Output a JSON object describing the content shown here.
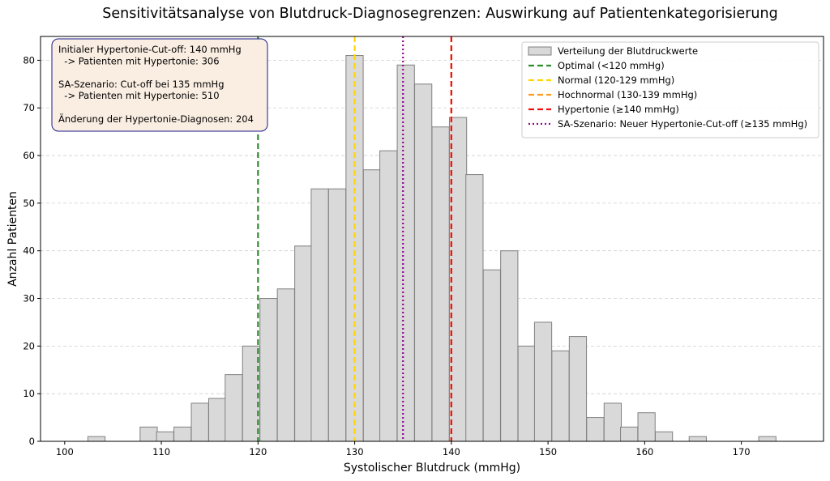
{
  "chart_data": {
    "type": "bar",
    "title": "Sensitivitätsanalyse von Blutdruck-Diagnosegrenzen: Auswirkung auf Patientenkategorisierung",
    "xlabel": "Systolischer Blutdruck (mmHg)",
    "ylabel": "Anzahl Patienten",
    "xlim": [
      97.5,
      178.5
    ],
    "ylim": [
      0,
      85
    ],
    "xticks": [
      100,
      110,
      120,
      130,
      140,
      150,
      160,
      170
    ],
    "yticks": [
      0,
      10,
      20,
      30,
      40,
      50,
      60,
      70,
      80
    ],
    "bin_width": 1.78,
    "grid": "y-dashed",
    "legend_position": "top-right",
    "histogram": {
      "name": "Verteilung der Blutdruckwerte",
      "color": "#d9d9d9",
      "edge_color": "#808080",
      "bins": [
        {
          "x0": 102.4,
          "count": 1
        },
        {
          "x0": 104.2,
          "count": 0
        },
        {
          "x0": 106.0,
          "count": 0
        },
        {
          "x0": 107.8,
          "count": 3
        },
        {
          "x0": 109.5,
          "count": 2
        },
        {
          "x0": 111.3,
          "count": 3
        },
        {
          "x0": 113.1,
          "count": 8
        },
        {
          "x0": 114.9,
          "count": 9
        },
        {
          "x0": 116.6,
          "count": 14
        },
        {
          "x0": 118.4,
          "count": 20
        },
        {
          "x0": 120.2,
          "count": 30
        },
        {
          "x0": 122.0,
          "count": 32
        },
        {
          "x0": 123.8,
          "count": 41
        },
        {
          "x0": 125.5,
          "count": 53
        },
        {
          "x0": 127.3,
          "count": 53
        },
        {
          "x0": 129.1,
          "count": 81
        },
        {
          "x0": 130.9,
          "count": 57
        },
        {
          "x0": 132.6,
          "count": 61
        },
        {
          "x0": 134.4,
          "count": 79
        },
        {
          "x0": 136.2,
          "count": 75
        },
        {
          "x0": 138.0,
          "count": 66
        },
        {
          "x0": 139.8,
          "count": 68
        },
        {
          "x0": 141.5,
          "count": 56
        },
        {
          "x0": 143.3,
          "count": 36
        },
        {
          "x0": 145.1,
          "count": 40
        },
        {
          "x0": 146.9,
          "count": 20
        },
        {
          "x0": 148.6,
          "count": 25
        },
        {
          "x0": 150.4,
          "count": 19
        },
        {
          "x0": 152.2,
          "count": 22
        },
        {
          "x0": 154.0,
          "count": 5
        },
        {
          "x0": 155.8,
          "count": 8
        },
        {
          "x0": 157.5,
          "count": 3
        },
        {
          "x0": 159.3,
          "count": 6
        },
        {
          "x0": 161.1,
          "count": 2
        },
        {
          "x0": 162.9,
          "count": 0
        },
        {
          "x0": 164.6,
          "count": 1
        },
        {
          "x0": 166.4,
          "count": 0
        },
        {
          "x0": 168.2,
          "count": 0
        },
        {
          "x0": 170.0,
          "count": 0
        },
        {
          "x0": 171.8,
          "count": 1
        }
      ]
    },
    "vlines": [
      {
        "name": "Optimal (<120 mmHg)",
        "x": 120,
        "color": "#2e8b2e",
        "style": "dashed"
      },
      {
        "name": "Normal (120-129 mmHg)",
        "x": 130,
        "color": "#ffd700",
        "style": "dashed"
      },
      {
        "name": "Hochnormal (130-139 mmHg)",
        "x": 140,
        "color": "#ff9a1f",
        "style": "dashed"
      },
      {
        "name": "Hypertonie (≥140 mmHg)",
        "x": 140,
        "color": "#ee1111",
        "style": "dashed"
      },
      {
        "name": "SA-Szenario: Neuer Hypertonie-Cut-off (≥135 mmHg)",
        "x": 135,
        "color": "#8b0a8b",
        "style": "dotted"
      }
    ],
    "annotation": {
      "lines": [
        "Initialer Hypertonie-Cut-off: 140 mmHg",
        "  -> Patienten mit Hypertonie: 306",
        "",
        "SA-Szenario: Cut-off bei 135 mmHg",
        "  -> Patienten mit Hypertonie: 510",
        "",
        "Änderung der Hypertonie-Diagnosen: 204"
      ],
      "background": "#faeee2",
      "border": "#1a1a8c"
    }
  }
}
